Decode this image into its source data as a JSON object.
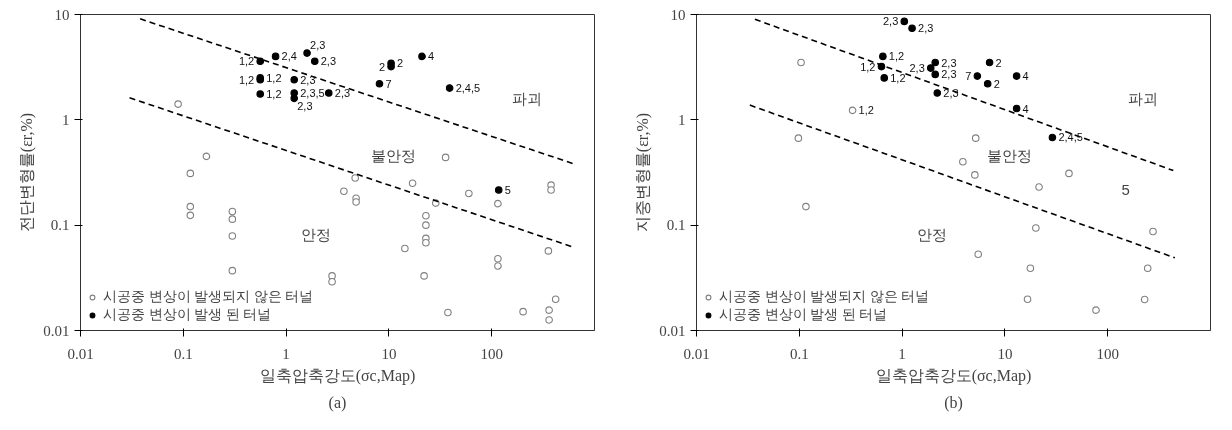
{
  "chart_data": [
    {
      "type": "scatter",
      "title": "(a)",
      "xlabel": "일축압축강도(σc,Map)",
      "ylabel": "전단변형률(εr,%)",
      "log": "xy",
      "xlim": [
        0.01,
        1000
      ],
      "ylim": [
        0.01,
        10
      ],
      "xticks": [
        0.01,
        0.1,
        1,
        10,
        100
      ],
      "yticks": [
        0.01,
        0.1,
        1,
        10
      ],
      "grid": false,
      "legend": "bottom left",
      "annotations": [
        "파괴",
        "불안정",
        "안정",
        {
          "text": "1,2",
          "x": 0.56,
          "y": 3.6
        },
        {
          "text": "2,4",
          "x": 0.79,
          "y": 4.0
        },
        {
          "text": "2,3",
          "x": 1.6,
          "y": 4.3
        },
        {
          "text": "2,3",
          "x": 1.9,
          "y": 3.6
        },
        {
          "text": "1,2",
          "x": 0.56,
          "y": 2.5
        },
        {
          "text": "1,2",
          "x": 0.56,
          "y": 2.4
        },
        {
          "text": "1,2",
          "x": 0.56,
          "y": 1.76
        },
        {
          "text": "2,3",
          "x": 1.2,
          "y": 2.4
        },
        {
          "text": "2,3,5",
          "x": 1.2,
          "y": 1.8
        },
        {
          "text": "2,3",
          "x": 1.2,
          "y": 1.6
        },
        {
          "text": "2,3",
          "x": 2.6,
          "y": 1.8
        },
        {
          "text": "2",
          "x": 10.5,
          "y": 3.45
        },
        {
          "text": "2",
          "x": 10.5,
          "y": 3.2
        },
        {
          "text": "7",
          "x": 8.1,
          "y": 2.2
        },
        {
          "text": "4",
          "x": 21,
          "y": 4.0
        },
        {
          "text": "2,4,5",
          "x": 39,
          "y": 2.0
        },
        {
          "text": "5",
          "x": 117,
          "y": 0.216
        }
      ],
      "series": [
        {
          "name": "시공중 변상이 발생되지 않은 터널",
          "color": "#808080",
          "marker": "circle",
          "x": [
            0.089,
            0.168,
            35.6,
            0.117,
            4.7,
            17,
            3.65,
            4.8,
            4.8,
            60,
            115,
            378,
            378,
            28.6,
            0.117,
            0.117,
            0.3,
            0.3,
            0.3,
            0.3,
            22.9,
            22.9,
            22.9,
            22.9,
            14.3,
            22,
            2.8,
            2.8,
            115,
            115,
            356,
            37.5,
            202,
            362,
            362,
            419
          ],
          "values": [
            1.41,
            0.45,
            0.44,
            0.31,
            0.28,
            0.25,
            0.21,
            0.18,
            0.166,
            0.2,
            0.16,
            0.24,
            0.216,
            0.162,
            0.15,
            0.124,
            0.135,
            0.114,
            0.079,
            0.037,
            0.123,
            0.1,
            0.075,
            0.068,
            0.06,
            0.033,
            0.033,
            0.029,
            0.048,
            0.041,
            0.057,
            0.0148,
            0.0151,
            0.0156,
            0.0126,
            0.0198
          ]
        },
        {
          "name": "시공중 변상이 발생 된 터널",
          "color": "#000000",
          "marker": "circle",
          "x": [
            0.56,
            0.79,
            1.6,
            1.9,
            0.56,
            0.56,
            0.56,
            1.2,
            1.2,
            1.2,
            2.6,
            10.5,
            10.5,
            8.1,
            21,
            39,
            117
          ],
          "values": [
            3.6,
            4.0,
            4.3,
            3.6,
            2.5,
            2.4,
            1.76,
            2.4,
            1.8,
            1.6,
            1.8,
            3.45,
            3.2,
            2.2,
            4.0,
            2.0,
            0.216
          ]
        },
        {
          "type": "line",
          "color": "#000000",
          "line_style": "dashed",
          "x": [
            0.038,
            640
          ],
          "values": [
            9.1,
            0.38
          ]
        },
        {
          "type": "line",
          "color": "#000000",
          "line_style": "dashed",
          "x": [
            0.03,
            617
          ],
          "values": [
            1.62,
            0.062
          ]
        }
      ]
    },
    {
      "type": "scatter",
      "title": "(b)",
      "xlabel": "일축압축강도(σc,Map)",
      "ylabel": "지중변형률(εr,%)",
      "log": "xy",
      "xlim": [
        0.01,
        1000
      ],
      "ylim": [
        0.01,
        10
      ],
      "xticks": [
        0.01,
        0.1,
        1,
        10,
        100
      ],
      "yticks": [
        0.01,
        0.1,
        1,
        10
      ],
      "grid": false,
      "legend": "bottom left",
      "annotations": [
        "파괴",
        "불안정",
        "안정",
        "5",
        {
          "text": "1,2",
          "x": 0.33,
          "y": 1.23
        },
        {
          "text": "2,3",
          "x": 1.05,
          "y": 8.6
        },
        {
          "text": "2,3",
          "x": 1.25,
          "y": 7.4
        },
        {
          "text": "1,2",
          "x": 0.65,
          "y": 4.0
        },
        {
          "text": "1,2",
          "x": 0.63,
          "y": 3.2
        },
        {
          "text": "1,2",
          "x": 0.67,
          "y": 2.5
        },
        {
          "text": "2,3",
          "x": 2.1,
          "y": 3.5
        },
        {
          "text": "2,3",
          "x": 1.9,
          "y": 3.1
        },
        {
          "text": "2,3",
          "x": 2.1,
          "y": 2.7
        },
        {
          "text": "2,3",
          "x": 2.2,
          "y": 1.8
        },
        {
          "text": "2",
          "x": 7.1,
          "y": 3.5
        },
        {
          "text": "7",
          "x": 5.4,
          "y": 2.6
        },
        {
          "text": "2",
          "x": 6.8,
          "y": 2.2
        },
        {
          "text": "4",
          "x": 13,
          "y": 2.6
        },
        {
          "text": "4",
          "x": 13,
          "y": 1.28
        },
        {
          "text": "2,4,5",
          "x": 29,
          "y": 0.68
        }
      ],
      "series": [
        {
          "name": "시공중 변상이 발생되지 않은 터널",
          "color": "#808080",
          "marker": "circle",
          "x": [
            0.104,
            0.33,
            0.098,
            5.2,
            3.9,
            42,
            5.1,
            21.5,
            0.116,
            20,
            276,
            5.5,
            17.7,
            245,
            16.6,
            229,
            77
          ],
          "values": [
            3.5,
            1.23,
            0.67,
            0.67,
            0.4,
            0.31,
            0.3,
            0.23,
            0.15,
            0.094,
            0.087,
            0.053,
            0.039,
            0.039,
            0.0198,
            0.0197,
            0.0156
          ]
        },
        {
          "name": "시공중 변상이 발생 된 터널",
          "color": "#000000",
          "marker": "circle",
          "x": [
            1.05,
            1.25,
            0.65,
            0.63,
            0.67,
            2.1,
            1.9,
            2.1,
            2.2,
            7.1,
            5.4,
            6.8,
            13,
            13,
            29
          ],
          "values": [
            8.6,
            7.4,
            4.0,
            3.2,
            2.5,
            3.5,
            3.1,
            2.7,
            1.8,
            3.5,
            2.6,
            2.2,
            2.6,
            1.28,
            0.68
          ]
        },
        {
          "type": "line",
          "color": "#000000",
          "line_style": "dashed",
          "x": [
            0.037,
            435
          ],
          "values": [
            9.0,
            0.33
          ]
        },
        {
          "type": "line",
          "color": "#000000",
          "line_style": "dashed",
          "x": [
            0.033,
            450
          ],
          "values": [
            1.38,
            0.049
          ]
        }
      ]
    }
  ]
}
